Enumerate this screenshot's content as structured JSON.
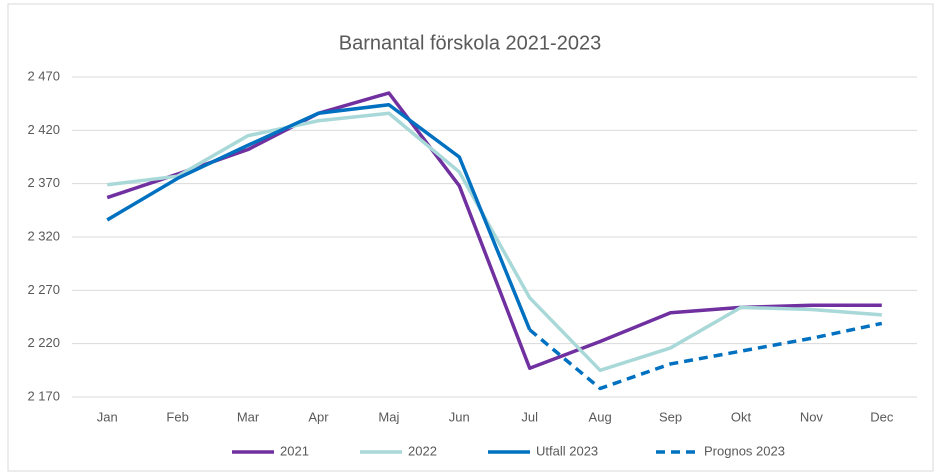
{
  "chart_data": {
    "type": "line",
    "title": "Barnantal förskola 2021-2023",
    "categories": [
      "Jan",
      "Feb",
      "Mar",
      "Apr",
      "Maj",
      "Jun",
      "Jul",
      "Aug",
      "Sep",
      "Okt",
      "Nov",
      "Dec"
    ],
    "series": [
      {
        "name": "2021",
        "color": "#7030a0",
        "values": [
          2357,
          2379,
          2402,
          2436,
          2455,
          2368,
          2197,
          2222,
          2249,
          2254,
          2256,
          2256
        ]
      },
      {
        "name": "2022",
        "color": "#a9d8d8",
        "values": [
          2369,
          2377,
          2415,
          2429,
          2436,
          2381,
          2263,
          2195,
          2216,
          2254,
          2252,
          2247
        ]
      },
      {
        "name": "Utfall 2023",
        "color": "#0070c0",
        "values": [
          2336,
          2375,
          2406,
          2436,
          2444,
          2395,
          2233,
          null,
          null,
          null,
          null,
          null
        ]
      },
      {
        "name": "Prognos 2023",
        "color": "#0070c0",
        "dashed": true,
        "values": [
          null,
          null,
          null,
          null,
          null,
          null,
          2233,
          2178,
          2201,
          2213,
          2225,
          2239
        ]
      }
    ],
    "ylim": [
      2170,
      2470
    ],
    "yticks": [
      {
        "value": 2170,
        "label": "2 170"
      },
      {
        "value": 2220,
        "label": "2 220"
      },
      {
        "value": 2270,
        "label": "2 270"
      },
      {
        "value": 2320,
        "label": "2 320"
      },
      {
        "value": 2370,
        "label": "2 370"
      },
      {
        "value": 2420,
        "label": "2 420"
      },
      {
        "value": 2470,
        "label": "2 470"
      }
    ],
    "grid": true,
    "legend": "bottom"
  }
}
